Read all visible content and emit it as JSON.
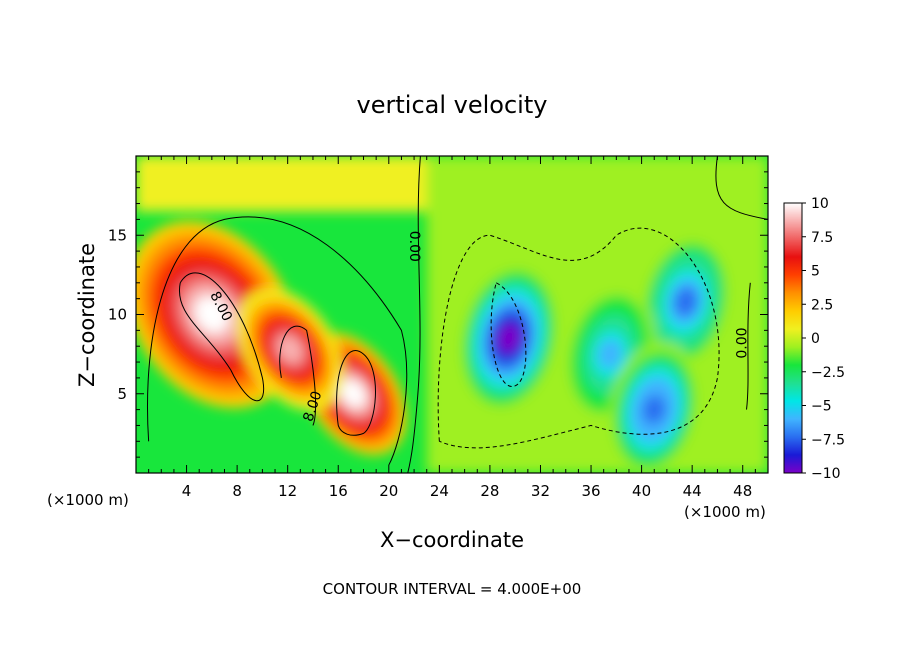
{
  "chart_data": {
    "type": "heatmap",
    "title": "vertical velocity",
    "xlabel": "X−coordinate",
    "ylabel": "Z−coordinate",
    "x_unit_left": "(×1000 m)",
    "x_unit_right": "(×1000 m)",
    "footer": "CONTOUR INTERVAL = 4.000E+00",
    "xlim": [
      0,
      50
    ],
    "ylim": [
      0,
      20
    ],
    "x_ticks": [
      4,
      8,
      12,
      16,
      20,
      24,
      28,
      32,
      36,
      40,
      44,
      48
    ],
    "y_ticks": [
      5,
      10,
      15
    ],
    "colorbar": {
      "min": -10,
      "max": 10,
      "ticks": [
        10,
        7.5,
        5,
        2.5,
        0,
        -2.5,
        -5,
        -7.5,
        -10
      ],
      "tick_labels": [
        "10",
        "7.5",
        "5",
        "2.5",
        "0",
        "−2.5",
        "−5",
        "−7.5",
        "−10"
      ],
      "colors": [
        "#7a00c8",
        "#1a1ad6",
        "#2a6ef0",
        "#40b4ff",
        "#00e6e6",
        "#20e090",
        "#18e63c",
        "#9ff020",
        "#f0f020",
        "#ffcc00",
        "#ff9000",
        "#ff4000",
        "#e81010",
        "#f06060",
        "#f8b0b0",
        "#ffffff"
      ]
    },
    "contour_labels": [
      {
        "text": "8.00",
        "x": 6.7,
        "y": 10.5,
        "angle": 62
      },
      {
        "text": "8.00",
        "x": 14.0,
        "y": 4.2,
        "angle": -72
      },
      {
        "text": "0.00",
        "x": 22.0,
        "y": 14.3,
        "angle": 90
      },
      {
        "text": "0.00",
        "x": 48.0,
        "y": 8.2,
        "angle": -90
      }
    ],
    "features": [
      {
        "name": "updraft-main",
        "x": 6.0,
        "z": 10.0,
        "w": 10.0
      },
      {
        "name": "updraft-secondary",
        "x": 17.2,
        "z": 5.0,
        "w": 9.5
      },
      {
        "name": "updraft-small",
        "x": 12.2,
        "z": 7.8,
        "w": 8.2
      },
      {
        "name": "downdraft-main",
        "x": 29.5,
        "z": 8.5,
        "w": -9.5
      },
      {
        "name": "downdraft-right",
        "x": 43.5,
        "z": 10.8,
        "w": -7.0
      },
      {
        "name": "downdraft-mid",
        "x": 37.5,
        "z": 7.5,
        "w": -5.5
      },
      {
        "name": "downdraft-lower-right",
        "x": 41.0,
        "z": 4.0,
        "w": -7.5
      }
    ]
  }
}
